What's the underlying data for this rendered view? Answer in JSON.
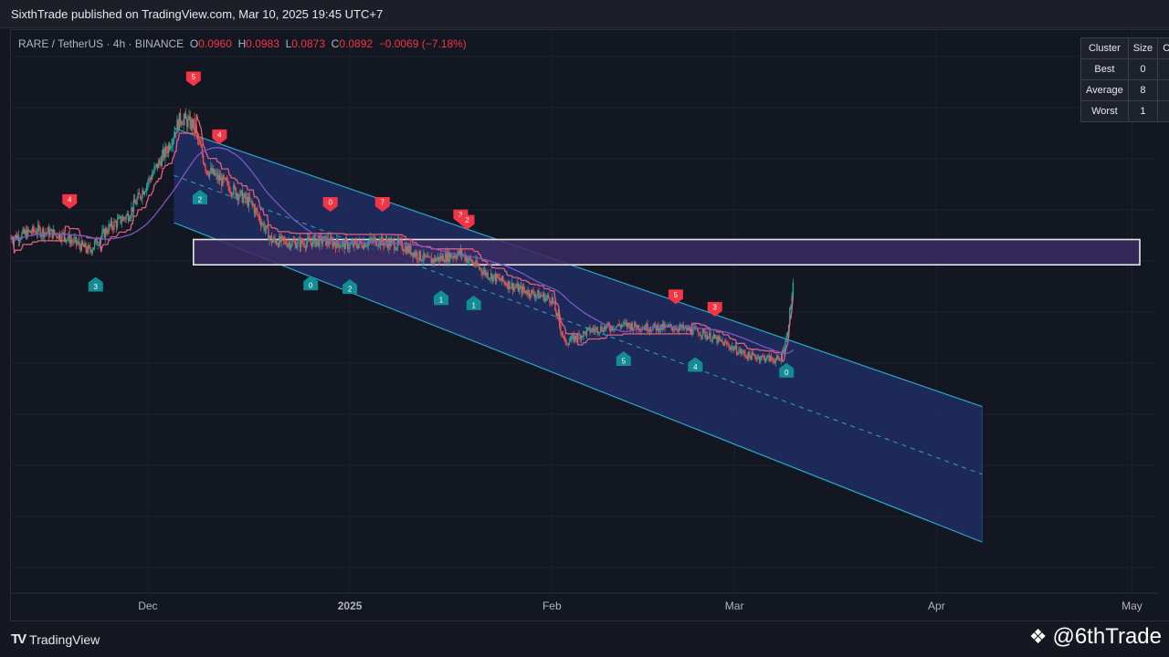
{
  "header": {
    "publisher_line": "SixthTrade published on TradingView.com, Mar 10, 2025 19:45 UTC+7"
  },
  "legend": {
    "symbol": "RARE / TetherUS · 4h · BINANCE",
    "open_label": "O",
    "open": "0.0960",
    "high_label": "H",
    "high": "0.0983",
    "low_label": "L",
    "low": "0.0873",
    "close_label": "C",
    "close": "0.0892",
    "change": "−0.0069 (−7.18%)"
  },
  "cluster_table": {
    "headers": [
      "Cluster",
      "Size",
      "Ce"
    ],
    "rows": [
      {
        "cluster": "Best",
        "size": "0",
        "ce": ""
      },
      {
        "cluster": "Average",
        "size": "8",
        "ce": ""
      },
      {
        "cluster": "Worst",
        "size": "1",
        "ce": ""
      }
    ]
  },
  "footer": {
    "brand_mark": "TV",
    "brand": "TradingView",
    "watermark": "@6thTrade",
    "watermark_icon": "binance-diamond-icon"
  },
  "colors": {
    "background": "#131722",
    "channel_fill": "#1f2d63",
    "channel_edge": "#2fa6c8",
    "zone_fill": "#3b2c62",
    "zone_border": "#e6e6e6",
    "trail_bear": "#e0607e",
    "trail_bull": "#26a69a",
    "ma_line": "#7e57c2",
    "candle_up": "#26a69a",
    "candle_down": "#ef5350",
    "signal_sell": "#f23645",
    "signal_buy": "#138c94"
  },
  "chart_data": {
    "type": "candlestick",
    "symbol": "RARE / TetherUS",
    "interval": "4h",
    "exchange": "BINANCE",
    "x_tick_labels": [
      "Dec",
      "2025",
      "Feb",
      "Mar",
      "Apr",
      "May"
    ],
    "x_tick_dates": [
      "2024-12-01",
      "2025-01-01",
      "2025-02-01",
      "2025-03-01",
      "2025-04-01",
      "2025-05-01"
    ],
    "x_range": [
      "2024-11-10",
      "2025-05-05"
    ],
    "grid": true,
    "price_path": [
      [
        "2024-11-10",
        0.149
      ],
      [
        "2024-11-14",
        0.152
      ],
      [
        "2024-11-18",
        0.15
      ],
      [
        "2024-11-22",
        0.144
      ],
      [
        "2024-11-25",
        0.153
      ],
      [
        "2024-11-28",
        0.158
      ],
      [
        "2024-12-01",
        0.171
      ],
      [
        "2024-12-04",
        0.184
      ],
      [
        "2024-12-06",
        0.196
      ],
      [
        "2024-12-08",
        0.193
      ],
      [
        "2024-12-10",
        0.176
      ],
      [
        "2024-12-13",
        0.17
      ],
      [
        "2024-12-17",
        0.162
      ],
      [
        "2024-12-20",
        0.148
      ],
      [
        "2024-12-24",
        0.147
      ],
      [
        "2024-12-28",
        0.148
      ],
      [
        "2025-01-01",
        0.146
      ],
      [
        "2025-01-05",
        0.148
      ],
      [
        "2025-01-09",
        0.146
      ],
      [
        "2025-01-13",
        0.14
      ],
      [
        "2025-01-18",
        0.143
      ],
      [
        "2025-01-22",
        0.135
      ],
      [
        "2025-01-27",
        0.129
      ],
      [
        "2025-02-01",
        0.125
      ],
      [
        "2025-02-03",
        0.108
      ],
      [
        "2025-02-07",
        0.113
      ],
      [
        "2025-02-12",
        0.115
      ],
      [
        "2025-02-16",
        0.114
      ],
      [
        "2025-02-20",
        0.114
      ],
      [
        "2025-02-24",
        0.112
      ],
      [
        "2025-02-28",
        0.107
      ],
      [
        "2025-03-03",
        0.103
      ],
      [
        "2025-03-06",
        0.102
      ],
      [
        "2025-03-08",
        0.101
      ],
      [
        "2025-03-09",
        0.11
      ],
      [
        "2025-03-10",
        0.13
      ]
    ],
    "channel": {
      "upper": [
        [
          "2024-12-05",
          0.192
        ],
        [
          "2025-04-08",
          0.083
        ]
      ],
      "lower": [
        [
          "2024-12-05",
          0.155
        ],
        [
          "2025-04-08",
          0.03
        ]
      ],
      "mid_dashed": true
    },
    "zone": {
      "from": "2024-12-08",
      "to": "2025-05-05",
      "price_low": 0.1385,
      "price_high": 0.1484
    },
    "signals": {
      "sell": [
        {
          "date": "2024-11-19",
          "label": "4"
        },
        {
          "date": "2024-12-08",
          "label": "5"
        },
        {
          "date": "2024-12-12",
          "label": "4"
        },
        {
          "date": "2024-12-29",
          "label": "0"
        },
        {
          "date": "2025-01-06",
          "label": "7"
        },
        {
          "date": "2025-01-18",
          "label": "3"
        },
        {
          "date": "2025-01-19",
          "label": "2"
        },
        {
          "date": "2025-02-20",
          "label": "5"
        },
        {
          "date": "2025-02-26",
          "label": "3"
        }
      ],
      "buy": [
        {
          "date": "2024-11-23",
          "label": "3"
        },
        {
          "date": "2024-12-09",
          "label": "2"
        },
        {
          "date": "2024-12-26",
          "label": "0"
        },
        {
          "date": "2025-01-01",
          "label": "2"
        },
        {
          "date": "2025-01-15",
          "label": "1"
        },
        {
          "date": "2025-01-20",
          "label": "1"
        },
        {
          "date": "2025-02-12",
          "label": "5"
        },
        {
          "date": "2025-02-23",
          "label": "4"
        },
        {
          "date": "2025-03-09",
          "label": "0"
        }
      ]
    }
  }
}
